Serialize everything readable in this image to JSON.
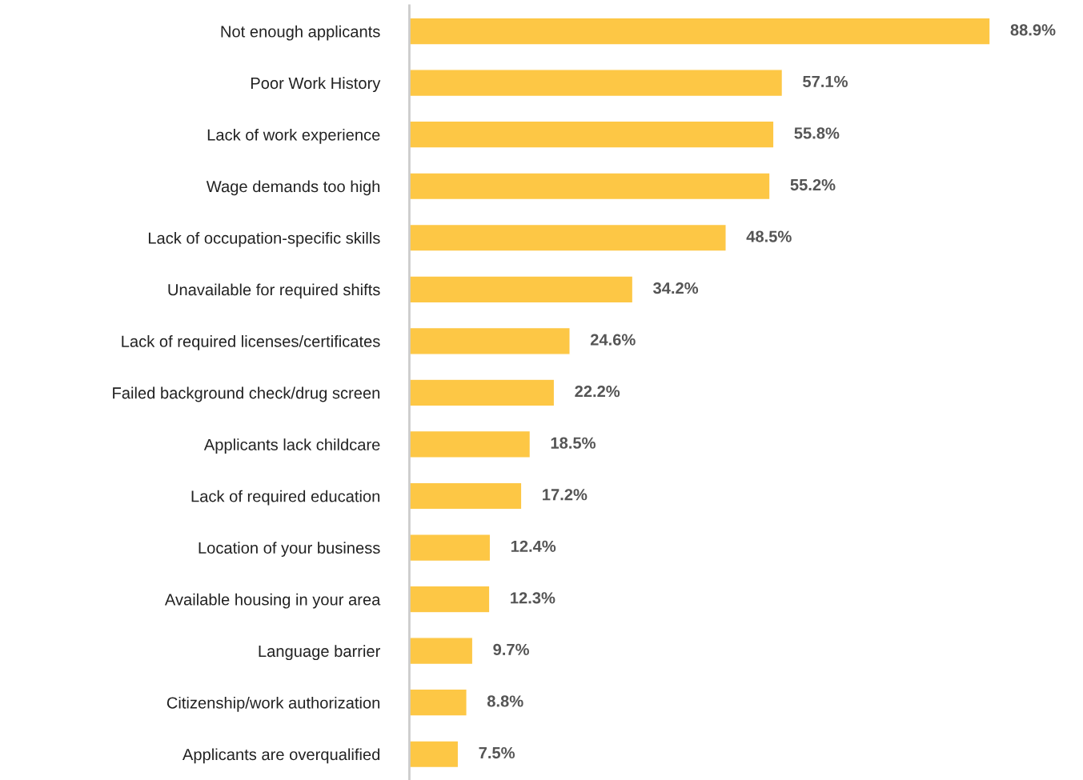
{
  "chart_data": {
    "type": "bar",
    "orientation": "horizontal",
    "categories": [
      "Not enough applicants",
      "Poor Work History",
      "Lack of work experience",
      "Wage demands too high",
      "Lack of occupation-specific skills",
      "Unavailable for required shifts",
      "Lack of required licenses/certificates",
      "Failed background check/drug screen",
      "Applicants lack childcare",
      "Lack of required education",
      "Location of your business",
      "Available housing in your area",
      "Language barrier",
      "Citizenship/work authorization",
      "Applicants are overqualified"
    ],
    "values": [
      88.9,
      57.1,
      55.8,
      55.2,
      48.5,
      34.2,
      24.6,
      22.2,
      18.5,
      17.2,
      12.4,
      12.3,
      9.7,
      8.8,
      7.5
    ],
    "value_labels": [
      "88.9%",
      "57.1%",
      "55.8%",
      "55.2%",
      "48.5%",
      "34.2%",
      "24.6%",
      "22.2%",
      "18.5%",
      "17.2%",
      "12.4%",
      "12.3%",
      "9.7%",
      "8.8%",
      "7.5%"
    ],
    "color": "#fdc745",
    "grid": false,
    "legend": false
  }
}
